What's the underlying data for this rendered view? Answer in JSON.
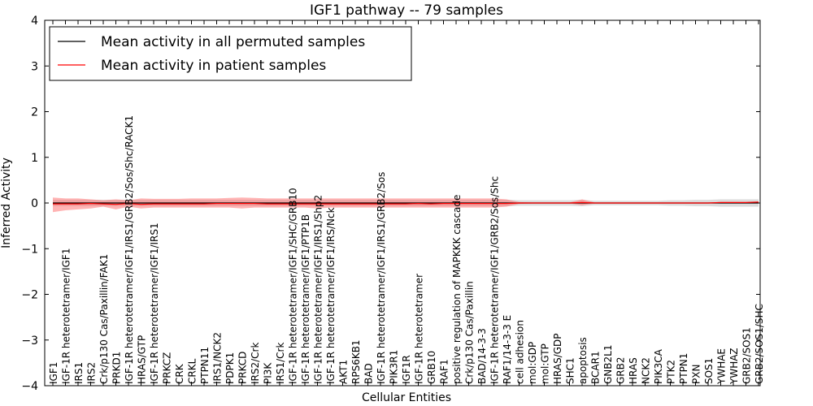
{
  "chart_data": {
    "type": "line",
    "title": "IGF1 pathway -- 79 samples",
    "xlabel": "Cellular Entities",
    "ylabel": "Inferred Activity",
    "ylim": [
      -4,
      4
    ],
    "yticks": [
      -4,
      -3,
      -2,
      -1,
      0,
      1,
      2,
      3,
      4
    ],
    "ytick_labels": [
      "−4",
      "−3",
      "−2",
      "−1",
      "0",
      "1",
      "2",
      "3",
      "4"
    ],
    "legend_position": "top-left",
    "categories": [
      "IGF1",
      "IGF-1R heterotetramer/IGF1",
      "IRS1",
      "IRS2",
      "Crk/p130 Cas/Paxillin/FAK1",
      "PRKD1",
      "IGF-1R heterotetramer/IGF1/IRS1/GRB2/Sos/Shc/RACK1",
      "HRAS/GTP",
      "IGF-1R heterotetramer/IGF1/IRS1",
      "PRKCZ",
      "CRK",
      "CRKL",
      "PTPN11",
      "IRS1/NCK2",
      "PDPK1",
      "PRKCD",
      "IRS2/Crk",
      "PI3K",
      "IRS1/Crk",
      "IGF-1R heterotetramer/IGF1/SHC/GRB10",
      "IGF-1R heterotetramer/IGF1/PTP1B",
      "IGF-1R heterotetramer/IGF1/IRS1/Shp2",
      "IGF-1R heterotetramer/IGF1/IRS/Nck",
      "AKT1",
      "RPS6KB1",
      "BAD",
      "IGF-1R heterotetramer/IGF1/IRS1/GRB2/Sos",
      "PIK3R1",
      "IGF1R",
      "IGF-1R heterotetramer",
      "GRB10",
      "RAF1",
      "positive regulation of MAPKKK cascade",
      "Crk/p130 Cas/Paxillin",
      "BAD/14-3-3",
      "IGF-1R heterotetramer/IGF1/GRB2/Sos/Shc",
      "RAF1/14-3-3 E",
      "cell adhesion",
      "mol:GDP",
      "mol:GTP",
      "HRAS/GDP",
      "SHC1",
      "apoptosis",
      "BCAR1",
      "GNB2L1",
      "GRB2",
      "HRAS",
      "NCK2",
      "PIK3CA",
      "PTK2",
      "PTPN1",
      "PXN",
      "SOS1",
      "YWHAE",
      "YWHAZ",
      "GRB2/SOS1",
      "GRB2/SOS1/SHC"
    ],
    "series": [
      {
        "name": "Mean activity in all permuted samples",
        "color": "#000000",
        "values": [
          0,
          0,
          0,
          0,
          0,
          0,
          0,
          0,
          0,
          0,
          0,
          0,
          0,
          0,
          0,
          0,
          0,
          0,
          0,
          0,
          0,
          0,
          0,
          0,
          0,
          0,
          0,
          0,
          0,
          0,
          0,
          0,
          0,
          0,
          0,
          0,
          0,
          0,
          0,
          0,
          0,
          0,
          0,
          0,
          0,
          0,
          0,
          0,
          0,
          0,
          0,
          0,
          0,
          0,
          0,
          0,
          0
        ],
        "band_lower": [
          -0.07,
          -0.07,
          -0.07,
          -0.07,
          -0.07,
          -0.07,
          -0.07,
          -0.07,
          -0.07,
          -0.07,
          -0.07,
          -0.07,
          -0.07,
          -0.07,
          -0.07,
          -0.07,
          -0.07,
          -0.07,
          -0.07,
          -0.07,
          -0.07,
          -0.07,
          -0.07,
          -0.07,
          -0.07,
          -0.07,
          -0.07,
          -0.07,
          -0.07,
          -0.07,
          -0.07,
          -0.07,
          -0.07,
          -0.07,
          -0.07,
          -0.07,
          -0.07,
          -0.06,
          -0.06,
          -0.06,
          -0.06,
          -0.06,
          -0.07,
          -0.05,
          -0.05,
          -0.05,
          -0.05,
          -0.05,
          -0.05,
          -0.06,
          -0.06,
          -0.07,
          -0.07,
          -0.08,
          -0.08,
          -0.08,
          -0.08
        ],
        "band_upper": [
          0.07,
          0.07,
          0.07,
          0.07,
          0.07,
          0.07,
          0.07,
          0.07,
          0.07,
          0.07,
          0.07,
          0.07,
          0.07,
          0.07,
          0.07,
          0.07,
          0.07,
          0.07,
          0.07,
          0.07,
          0.07,
          0.07,
          0.07,
          0.07,
          0.07,
          0.07,
          0.07,
          0.07,
          0.07,
          0.07,
          0.07,
          0.07,
          0.07,
          0.07,
          0.07,
          0.07,
          0.07,
          0.06,
          0.06,
          0.06,
          0.06,
          0.06,
          0.07,
          0.05,
          0.05,
          0.05,
          0.05,
          0.05,
          0.05,
          0.06,
          0.06,
          0.07,
          0.07,
          0.08,
          0.08,
          0.08,
          0.08
        ]
      },
      {
        "name": "Mean activity in patient samples",
        "color": "#ff0000",
        "values": [
          -0.02,
          -0.02,
          -0.02,
          -0.01,
          -0.02,
          -0.03,
          -0.01,
          -0.03,
          -0.02,
          -0.02,
          -0.02,
          -0.02,
          -0.02,
          -0.01,
          -0.01,
          -0.01,
          -0.01,
          -0.02,
          -0.02,
          -0.02,
          -0.02,
          -0.02,
          -0.02,
          -0.02,
          -0.02,
          -0.02,
          -0.02,
          -0.02,
          -0.02,
          -0.01,
          -0.02,
          -0.01,
          -0.01,
          -0.01,
          -0.01,
          -0.01,
          -0.01,
          0,
          0,
          0,
          0,
          0,
          0.01,
          0,
          0,
          0,
          0,
          0,
          0,
          0,
          0,
          0,
          0,
          0.01,
          0.01,
          0.01,
          0.02
        ],
        "band_lower": [
          -0.2,
          -0.16,
          -0.14,
          -0.12,
          -0.08,
          -0.14,
          -0.08,
          -0.12,
          -0.1,
          -0.1,
          -0.1,
          -0.1,
          -0.1,
          -0.1,
          -0.1,
          -0.12,
          -0.1,
          -0.1,
          -0.1,
          -0.1,
          -0.1,
          -0.12,
          -0.1,
          -0.1,
          -0.1,
          -0.1,
          -0.1,
          -0.1,
          -0.1,
          -0.1,
          -0.1,
          -0.1,
          -0.1,
          -0.1,
          -0.1,
          -0.1,
          -0.08,
          -0.02,
          -0.01,
          -0.01,
          -0.01,
          -0.01,
          -0.05,
          -0.01,
          -0.01,
          -0.01,
          -0.01,
          -0.01,
          -0.01,
          -0.01,
          -0.01,
          -0.01,
          -0.01,
          0,
          0,
          0,
          0
        ],
        "band_upper": [
          0.12,
          0.1,
          0.1,
          0.08,
          0.06,
          0.08,
          0.06,
          0.1,
          0.09,
          0.09,
          0.09,
          0.1,
          0.1,
          0.1,
          0.11,
          0.12,
          0.11,
          0.1,
          0.1,
          0.1,
          0.1,
          0.1,
          0.1,
          0.1,
          0.1,
          0.1,
          0.1,
          0.1,
          0.1,
          0.1,
          0.1,
          0.1,
          0.1,
          0.1,
          0.1,
          0.1,
          0.08,
          0.02,
          0.01,
          0.01,
          0.01,
          0.01,
          0.08,
          0.01,
          0.01,
          0.01,
          0.01,
          0.01,
          0.01,
          0.01,
          0.01,
          0.01,
          0.01,
          0.02,
          0.02,
          0.02,
          0.03
        ]
      }
    ]
  }
}
